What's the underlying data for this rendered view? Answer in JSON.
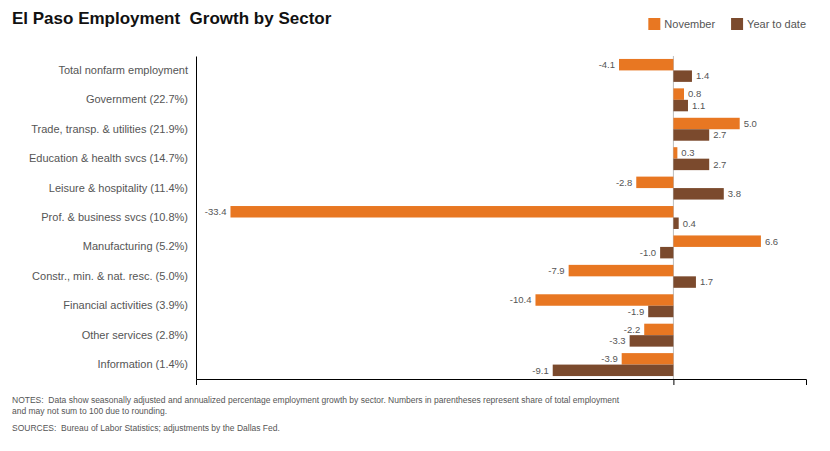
{
  "chart_data": {
    "type": "bar",
    "orientation": "horizontal",
    "title": "El Paso Employment  Growth by Sector",
    "categories": [
      "Total nonfarm employment",
      "Government (22.7%)",
      "Trade, transp. & utilities (21.9%)",
      "Education & health svcs (14.7%)",
      "Leisure & hospitality (11.4%)",
      "Prof. & business svcs (10.8%)",
      "Manufacturing (5.2%)",
      "Constr., min. & nat. resc. (5.0%)",
      "Financial activities (3.9%)",
      "Other services (2.8%)",
      "Information (1.4%)"
    ],
    "series": [
      {
        "name": "November",
        "color": "#E87722",
        "values": [
          -4.1,
          0.8,
          5.0,
          0.3,
          -2.8,
          -33.4,
          6.6,
          -7.9,
          -10.4,
          -2.2,
          -3.9
        ],
        "value_labels": [
          "-4.1",
          "0.8",
          "5.0",
          "0.3",
          "-2.8",
          "-33.4",
          "6.6",
          "-7.9",
          "-10.4",
          "-2.2",
          "-3.9"
        ]
      },
      {
        "name": "Year to date",
        "color": "#7B4A2D",
        "values": [
          1.4,
          1.1,
          2.7,
          2.7,
          3.8,
          0.4,
          -1.0,
          1.7,
          -1.9,
          -3.3,
          -9.1
        ],
        "value_labels": [
          "1.4",
          "1.1",
          "2.7",
          "2.7",
          "3.8",
          "0.4",
          "-1.0",
          "1.7",
          "-1.9",
          "-3.3",
          "-9.1"
        ]
      }
    ],
    "xlim": [
      -36,
      10
    ],
    "xticks": [
      0
    ],
    "grid": true,
    "tick_labels": "y",
    "data_labels": true,
    "legend": "top",
    "annotations": [
      "NOTES:  Data show seasonally adjusted and annualized percentage employment growth by sector. Numbers in parentheses represent share of total employment\nand may not sum to 100 due to rounding.",
      "SOURCES:  Bureau of Labor Statistics; adjustments by the Dallas Fed."
    ]
  }
}
